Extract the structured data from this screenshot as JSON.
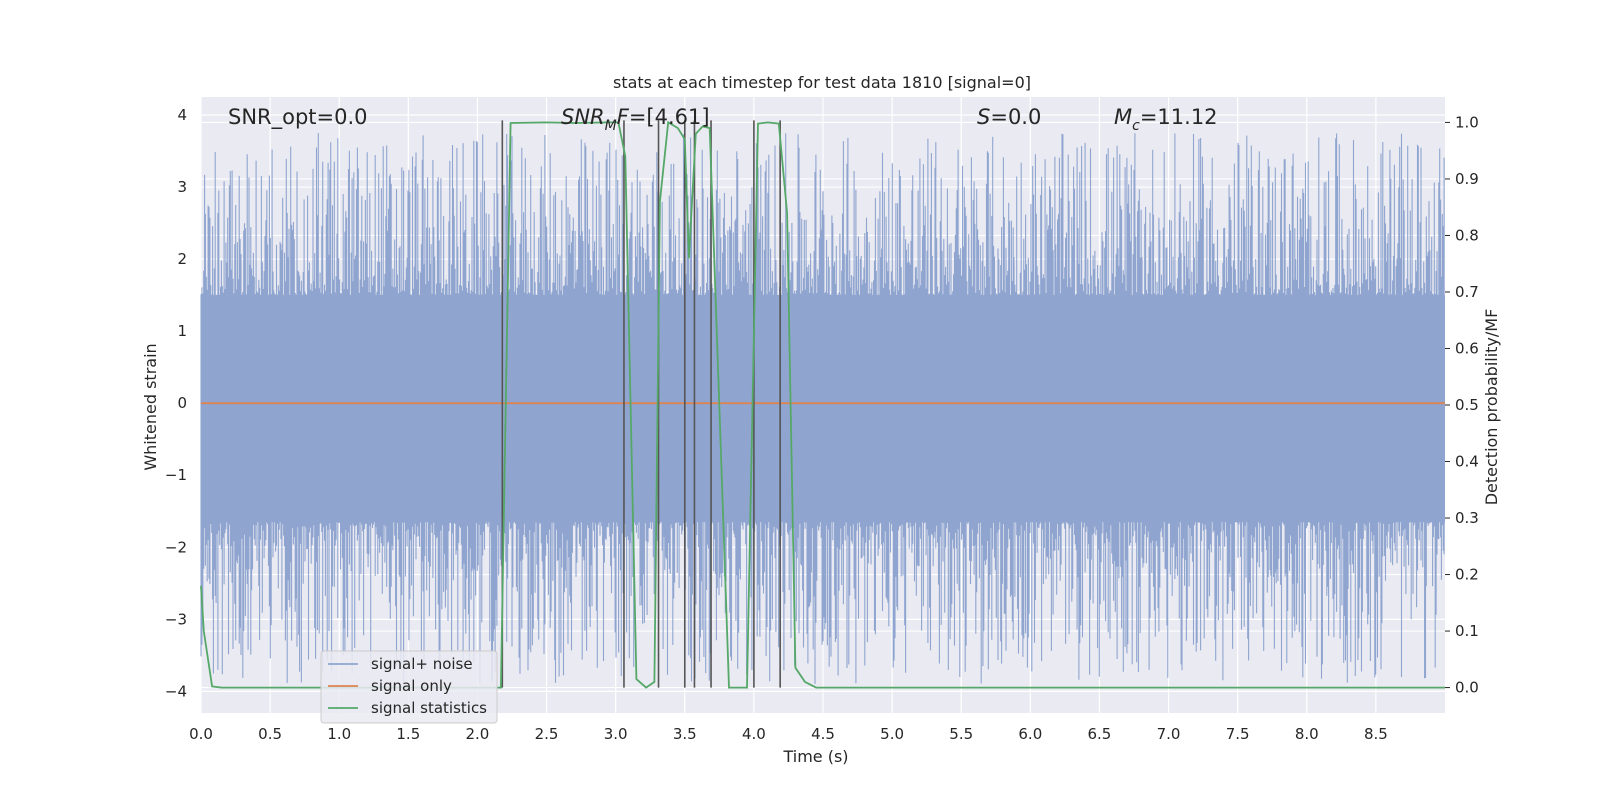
{
  "chart_data": {
    "type": "line",
    "title": "stats at each timestep for test data 1810 [signal=0]",
    "xlabel": "Time (s)",
    "ylabel_left": "Whitened strain",
    "ylabel_right": "Detection probability/MF",
    "xlim": [
      0.0,
      9.0
    ],
    "ylim_left": [
      -4.3,
      4.25
    ],
    "ylim_right": [
      -0.045,
      1.045
    ],
    "xticks": [
      "0.0",
      "0.5",
      "1.0",
      "1.5",
      "2.0",
      "2.5",
      "3.0",
      "3.5",
      "4.0",
      "4.5",
      "5.0",
      "5.5",
      "6.0",
      "6.5",
      "7.0",
      "7.5",
      "8.0",
      "8.5"
    ],
    "yticks_left": [
      "4",
      "3",
      "2",
      "1",
      "0",
      "−1",
      "−2",
      "−3",
      "−4"
    ],
    "yticks_right": [
      "1.0",
      "0.9",
      "0.8",
      "0.7",
      "0.6",
      "0.5",
      "0.4",
      "0.3",
      "0.2",
      "0.1",
      "0.0"
    ],
    "grid": true,
    "legend_position": "lower-left",
    "colors": {
      "noise": "#8fa5cf",
      "signal": "#dd8452",
      "stats": "#55a868",
      "vlines": "#555555",
      "background": "#eaeaf2",
      "grid": "#ffffff"
    },
    "annotations": {
      "snr_opt": "SNR_opt=0.0",
      "snr_mf_main": "SNR",
      "snr_mf_sub": "M",
      "snr_mf_italic": "F",
      "snr_mf_value": "=[4.61]",
      "s_main": "S",
      "s_value": "=0.0",
      "mc_main": "M",
      "mc_sub": "c",
      "mc_value": "=11.12"
    },
    "series": [
      {
        "name": "signal+ noise",
        "axis": "left",
        "description_envelope": {
          "dense_min": -1.65,
          "dense_max": 1.5,
          "spike_max": 3.75,
          "spike_min": -3.9
        }
      },
      {
        "name": "signal only",
        "axis": "left",
        "x": [
          0.0,
          9.0
        ],
        "y": [
          0.0,
          0.0
        ]
      },
      {
        "name": "signal statistics",
        "axis": "right",
        "x": [
          0.0,
          0.02,
          0.08,
          0.15,
          0.5,
          1.0,
          1.5,
          2.0,
          2.17,
          2.24,
          2.5,
          2.7,
          2.95,
          3.02,
          3.07,
          3.15,
          3.22,
          3.28,
          3.32,
          3.38,
          3.45,
          3.5,
          3.53,
          3.58,
          3.63,
          3.68,
          3.75,
          3.82,
          3.95,
          4.03,
          4.1,
          4.18,
          4.24,
          4.3,
          4.37,
          4.45,
          5.0,
          6.0,
          7.0,
          8.0,
          9.0
        ],
        "y": [
          0.18,
          0.1,
          0.002,
          0.0,
          0.0,
          0.0,
          0.0,
          0.0,
          0.0,
          0.999,
          1.0,
          0.999,
          1.0,
          1.0,
          0.94,
          0.015,
          0.0,
          0.01,
          0.86,
          1.0,
          0.99,
          0.97,
          0.76,
          0.98,
          0.993,
          0.99,
          0.5,
          0.0,
          0.0,
          0.998,
          1.0,
          0.998,
          0.84,
          0.035,
          0.01,
          0.0,
          0.0,
          0.0,
          0.0,
          0.0,
          0.0
        ]
      }
    ],
    "vlines_x": [
      2.18,
      3.06,
      3.31,
      3.5,
      3.57,
      3.69,
      4.0,
      4.19
    ]
  }
}
